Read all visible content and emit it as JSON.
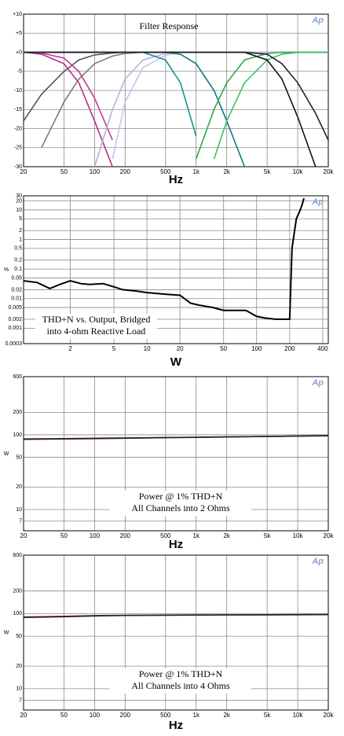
{
  "chart_data": [
    {
      "type": "line",
      "title": "Filter Response",
      "xlabel": "Hz",
      "logo": "Ap",
      "xlog": true,
      "ylog": false,
      "grid": true,
      "xlim": [
        20,
        20000
      ],
      "ylim": [
        -30,
        10
      ],
      "xticks": [
        20,
        50,
        100,
        200,
        500,
        {
          "value": 1000,
          "label": "1k"
        },
        {
          "value": 2000,
          "label": "2k"
        },
        {
          "value": 5000,
          "label": "5k"
        },
        {
          "value": 10000,
          "label": "10k"
        },
        {
          "value": 20000,
          "label": "20k"
        }
      ],
      "yticks": [
        {
          "value": 10,
          "label": "+10"
        },
        {
          "value": 5,
          "label": "+5"
        },
        {
          "value": 0,
          "label": "+0"
        },
        -5,
        -10,
        -15,
        -20,
        -25,
        -30
      ],
      "x": [
        20,
        30,
        50,
        70,
        100,
        150,
        200,
        300,
        500,
        700,
        1000,
        1500,
        2000,
        3000,
        5000,
        7000,
        10000,
        15000,
        20000
      ],
      "series": [
        {
          "color": "#c0392b",
          "values": [
            0,
            0,
            0,
            0,
            0,
            0,
            0,
            0,
            0,
            0,
            0,
            0,
            0,
            0,
            0,
            0,
            0,
            0,
            0
          ]
        },
        {
          "color": "#555555",
          "values": [
            -18,
            -11,
            -5,
            -2,
            -0.7,
            -0.2,
            0,
            0,
            0,
            0,
            0,
            0,
            0,
            0,
            0,
            0,
            0,
            0,
            0
          ]
        },
        {
          "color": "#7a7a7a",
          "values": [
            null,
            -25,
            -13,
            -7,
            -3,
            -1,
            -0.3,
            0,
            0,
            0,
            0,
            0,
            0,
            0,
            0,
            0,
            0,
            0,
            0
          ]
        },
        {
          "color": "#b0308a",
          "values": [
            0,
            -0.5,
            -3,
            -8,
            -18,
            -30,
            null,
            null,
            null,
            null,
            null,
            null,
            null,
            null,
            null,
            null,
            null,
            null,
            null
          ]
        },
        {
          "color": "#c0389a",
          "values": [
            0,
            -0.2,
            -1.5,
            -5,
            -12,
            -23,
            null,
            null,
            null,
            null,
            null,
            null,
            null,
            null,
            null,
            null,
            null,
            null,
            null
          ]
        },
        {
          "color": "#b8b0e0",
          "values": [
            null,
            null,
            null,
            null,
            -30,
            -15,
            -7,
            -2,
            -0.3,
            0,
            0,
            0,
            0,
            0,
            0,
            0,
            0,
            0,
            0
          ]
        },
        {
          "color": "#c8c2ea",
          "values": [
            null,
            null,
            null,
            null,
            null,
            -28,
            -13,
            -4,
            -0.8,
            0,
            0,
            0,
            0,
            0,
            0,
            0,
            0,
            0,
            0
          ]
        },
        {
          "color": "#1a8f8f",
          "values": [
            0,
            0,
            0,
            0,
            0,
            0,
            0,
            0,
            -2,
            -8,
            -22,
            null,
            null,
            null,
            null,
            null,
            null,
            null,
            null
          ]
        },
        {
          "color": "#0f7a80",
          "values": [
            0,
            0,
            0,
            0,
            0,
            0,
            0,
            0,
            0,
            -0.5,
            -3,
            -10,
            -18,
            -30,
            null,
            null,
            null,
            null,
            null
          ]
        },
        {
          "color": "#2aa84a",
          "values": [
            null,
            null,
            null,
            null,
            null,
            null,
            null,
            null,
            null,
            null,
            -28,
            -15,
            -8,
            -2,
            -0.3,
            0,
            0,
            0,
            0
          ]
        },
        {
          "color": "#3cc060",
          "values": [
            null,
            null,
            null,
            null,
            null,
            null,
            null,
            null,
            null,
            null,
            null,
            -28,
            -18,
            -8,
            -2,
            -0.5,
            0,
            0,
            0
          ]
        },
        {
          "color": "#111111",
          "values": [
            0,
            0,
            0,
            0,
            0,
            0,
            0,
            0,
            0,
            0,
            0,
            0,
            0,
            0,
            -2,
            -7,
            -17,
            -30,
            null
          ]
        },
        {
          "color": "#222222",
          "values": [
            0,
            0,
            0,
            0,
            0,
            0,
            0,
            0,
            0,
            0,
            0,
            0,
            0,
            0,
            -0.5,
            -3,
            -8,
            -16,
            -23
          ]
        }
      ]
    },
    {
      "type": "line",
      "xlabel": "W",
      "ylabel": "%",
      "logo": "Ap",
      "xlog": true,
      "ylog": true,
      "grid": true,
      "annotation": [
        "THD+N vs. Output, Bridged",
        "into 4-ohm Reactive Load"
      ],
      "xlim": [
        0.75,
        450
      ],
      "ylim": [
        0.0003,
        30
      ],
      "xticks": [
        2,
        5,
        10,
        20,
        50,
        100,
        200,
        400
      ],
      "yticks": [
        30,
        20,
        10,
        5,
        2,
        1,
        0.5,
        0.2,
        0.1,
        0.05,
        0.02,
        0.01,
        0.005,
        0.002,
        0.001,
        0.0003
      ],
      "series": [
        {
          "color": "#000000",
          "x": [
            0.75,
            1,
            1.3,
            1.6,
            2,
            2.5,
            3,
            4,
            5,
            6,
            8,
            10,
            15,
            20,
            25,
            30,
            40,
            50,
            60,
            80,
            100,
            120,
            150,
            200,
            210,
            230,
            250,
            260,
            270
          ],
          "values": [
            0.04,
            0.035,
            0.022,
            0.03,
            0.04,
            0.032,
            0.03,
            0.032,
            0.025,
            0.02,
            0.018,
            0.016,
            0.014,
            0.013,
            0.007,
            0.006,
            0.005,
            0.004,
            0.004,
            0.004,
            0.0025,
            0.0022,
            0.002,
            0.002,
            0.5,
            5,
            10,
            15,
            25
          ]
        }
      ]
    },
    {
      "type": "line",
      "xlabel": "Hz",
      "ylabel": "W",
      "logo": "Ap",
      "xlog": true,
      "ylog": true,
      "grid": true,
      "annotation": [
        "Power @ 1% THD+N",
        "All Channels into 2 Ohms"
      ],
      "xlim": [
        20,
        20000
      ],
      "ylim": [
        5.2,
        600
      ],
      "xticks": [
        20,
        50,
        100,
        200,
        500,
        {
          "value": 1000,
          "label": "1k"
        },
        {
          "value": 2000,
          "label": "2k"
        },
        {
          "value": 5000,
          "label": "5k"
        },
        {
          "value": 10000,
          "label": "10k"
        },
        {
          "value": 20000,
          "label": "20k"
        }
      ],
      "yticks": [
        600,
        200,
        100,
        50,
        20,
        10,
        7
      ],
      "x": [
        20,
        50,
        100,
        200,
        500,
        1000,
        2000,
        5000,
        10000,
        20000
      ],
      "series": [
        {
          "color": "#a0202a",
          "values": [
            88,
            89,
            90,
            91,
            92,
            93,
            94,
            95,
            96,
            98
          ]
        },
        {
          "color": "#222222",
          "values": [
            87,
            88,
            89,
            90,
            91.5,
            92.5,
            93.5,
            95,
            96,
            97
          ]
        }
      ]
    },
    {
      "type": "line",
      "xlabel": "Hz",
      "ylabel": "W",
      "logo": "Ap",
      "xlog": true,
      "ylog": true,
      "grid": true,
      "annotation": [
        "Power @ 1% THD+N",
        "All Channels into 4 Ohms"
      ],
      "xlim": [
        20,
        20000
      ],
      "ylim": [
        5.2,
        600
      ],
      "xticks": [
        20,
        50,
        100,
        200,
        500,
        {
          "value": 1000,
          "label": "1k"
        },
        {
          "value": 2000,
          "label": "2k"
        },
        {
          "value": 5000,
          "label": "5k"
        },
        {
          "value": 10000,
          "label": "10k"
        },
        {
          "value": 20000,
          "label": "20k"
        }
      ],
      "yticks": [
        600,
        200,
        100,
        50,
        20,
        10,
        7
      ],
      "x": [
        20,
        50,
        100,
        200,
        500,
        1000,
        2000,
        5000,
        10000,
        20000
      ],
      "series": [
        {
          "color": "#a0202a",
          "values": [
            90,
            92,
            94,
            95,
            95.5,
            96,
            96,
            96.5,
            97,
            97
          ]
        },
        {
          "color": "#222222",
          "values": [
            89,
            91,
            93,
            94.5,
            95,
            95.5,
            96,
            96,
            96.5,
            97
          ]
        }
      ]
    }
  ]
}
